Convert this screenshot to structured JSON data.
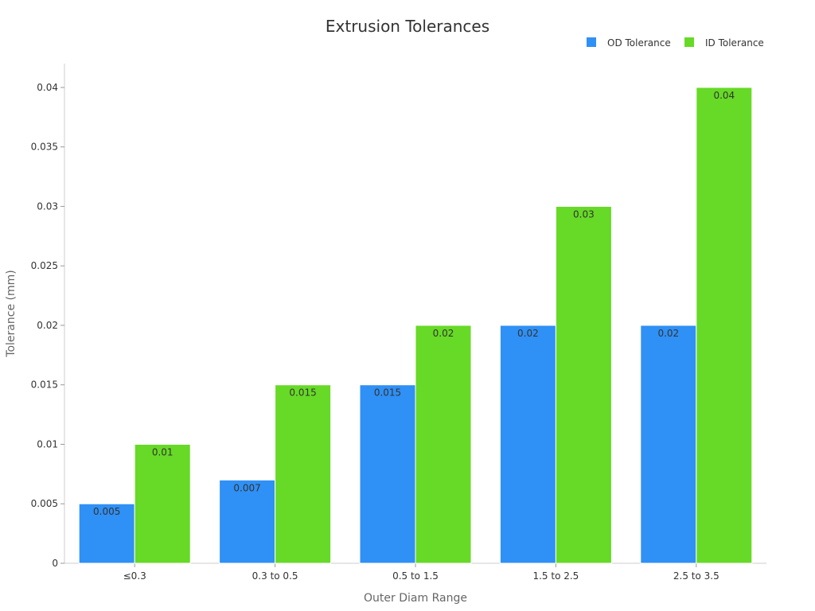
{
  "chart_data": {
    "type": "bar",
    "title": "Extrusion Tolerances",
    "xlabel": "Outer Diam Range",
    "ylabel": "Tolerance (mm)",
    "categories": [
      "≤0.3",
      "0.3 to 0.5",
      "0.5 to 1.5",
      "1.5 to 2.5",
      "2.5 to 3.5"
    ],
    "series": [
      {
        "name": "OD Tolerance",
        "color": "#2F90F5",
        "values": [
          0.005,
          0.007,
          0.015,
          0.02,
          0.02
        ]
      },
      {
        "name": "ID Tolerance",
        "color": "#66DA26",
        "values": [
          0.01,
          0.015,
          0.02,
          0.03,
          0.04
        ]
      }
    ],
    "ylim": [
      0,
      0.042
    ],
    "yticks": [
      "0",
      "0.005",
      "0.01",
      "0.015",
      "0.02",
      "0.025",
      "0.03",
      "0.035",
      "0.04"
    ],
    "data_labels": {
      "OD Tolerance": [
        "0.005",
        "0.007",
        "0.015",
        "0.02",
        "0.02"
      ],
      "ID Tolerance": [
        "0.01",
        "0.015",
        "0.02",
        "0.03",
        "0.04"
      ]
    },
    "grid": false,
    "legend_position": "top-right"
  }
}
